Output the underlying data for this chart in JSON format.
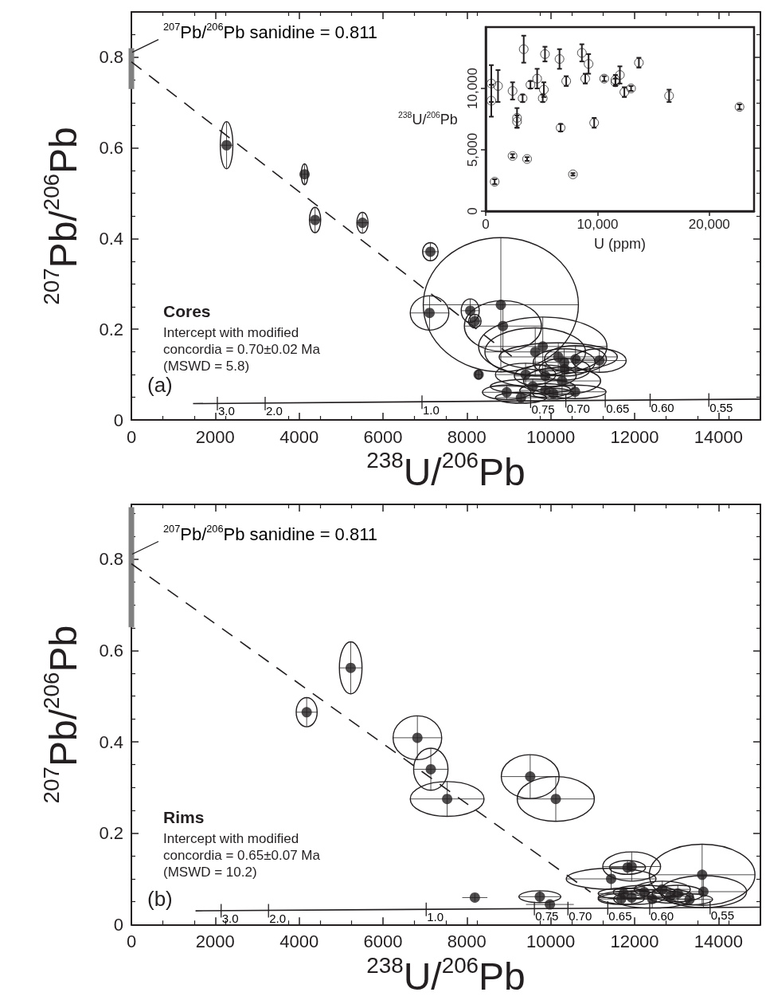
{
  "chart_data": [
    {
      "type": "scatter",
      "title": "Cores",
      "subtitle": "Intercept with modified\nconcordia = 0.70±0.02 Ma\n(MSWD = 5.8)",
      "xlabel": "$^{238}$U/$^{206}$Pb",
      "ylabel": "$^{207}$Pb/$^{206}$Pb",
      "xlim": [
        0,
        15000
      ],
      "xticks": [
        0,
        2000,
        4000,
        6000,
        8000,
        10000,
        12000,
        14000
      ],
      "ylim": [
        0,
        0.9
      ],
      "yticks": [
        0,
        0.2,
        0.4,
        0.6,
        0.8
      ],
      "series": [
        {
          "type": "line",
          "color": "#808080",
          "x": [
            0,
            0
          ],
          "values": [
            0.73,
            0.82
          ]
        },
        {
          "type": "scatter",
          "marker": "circle",
          "color": "#231f20",
          "x": [
            2270,
            4130,
            4380,
            5510,
            7130,
            7110,
            8810,
            8080,
            8190,
            8860,
            9810,
            9630,
            10180,
            10320,
            10590,
            11160,
            8280,
            9400,
            9870,
            10270,
            10330,
            9570,
            9870,
            10060,
            10580,
            8950,
            9290
          ],
          "values": [
            0.606,
            0.542,
            0.441,
            0.435,
            0.371,
            0.236,
            0.254,
            0.241,
            0.218,
            0.207,
            0.162,
            0.15,
            0.139,
            0.127,
            0.134,
            0.131,
            0.1,
            0.1,
            0.097,
            0.086,
            0.112,
            0.074,
            0.065,
            0.058,
            0.062,
            0.061,
            0.049
          ],
          "xerrors": [
            150,
            80,
            135,
            135,
            185,
            460,
            1850,
            215,
            150,
            920,
            1530,
            1200,
            1410,
            740,
            740,
            640,
            80,
            720,
            740,
            920,
            610,
            1010,
            610,
            490,
            740,
            580,
            610
          ],
          "errors": [
            0.052,
            0.023,
            0.028,
            0.023,
            0.02,
            0.038,
            0.148,
            0.026,
            0.015,
            0.056,
            0.065,
            0.053,
            0.031,
            0.03,
            0.03,
            0.026,
            0.01,
            0.025,
            0.024,
            0.03,
            0.024,
            0.016,
            0.015,
            0.012,
            0.015,
            0.016,
            0.012
          ]
        },
        {
          "type": "line",
          "color": "#231f20",
          "line_style": "dashed",
          "x": [
            0,
            9200
          ],
          "values": [
            0.79,
            0.131
          ]
        },
        {
          "type": "line",
          "color": "#231f20",
          "line_style": "solid",
          "x": [
            1470,
            15000
          ],
          "values": [
            0.036,
            0.046
          ]
        }
      ],
      "annotations": [
        "(a)",
        {
          "text": "$^{207}$Pb/$^{206}$Pb sanidine = 0.811",
          "x": 0,
          "y": 0.811
        },
        {
          "text": "3.0",
          "x": 2050,
          "y": 0.037
        },
        {
          "text": "2.0",
          "x": 3190,
          "y": 0.037
        },
        {
          "text": "1.0",
          "x": 6930,
          "y": 0.04
        },
        {
          "text": "0.75",
          "x": 9520,
          "y": 0.042
        },
        {
          "text": "0.70",
          "x": 10360,
          "y": 0.043
        },
        {
          "text": "0.65",
          "x": 11300,
          "y": 0.043
        },
        {
          "text": "0.60",
          "x": 12370,
          "y": 0.044
        },
        {
          "text": "0.55",
          "x": 13770,
          "y": 0.045
        }
      ]
    },
    {
      "type": "scatter",
      "xlabel": "U (ppm)",
      "ylabel": "$^{238}$U/$^{206}$Pb",
      "xlim": [
        0,
        24000
      ],
      "xticks": [
        0,
        {
          "value": 10000,
          "label": "10,000"
        },
        {
          "value": 20000,
          "label": "20,000"
        }
      ],
      "ylim": [
        0,
        15000
      ],
      "yticks": [
        0,
        {
          "value": 5000,
          "label": "5,000"
        },
        {
          "value": 10000,
          "label": "10,000"
        }
      ],
      "series": [
        {
          "type": "scatter",
          "marker": "circle",
          "color": "#231f20",
          "x": [
            500,
            500,
            1100,
            2400,
            3400,
            3300,
            2800,
            2800,
            2400,
            3700,
            800,
            4000,
            4600,
            5300,
            5200,
            5100,
            6600,
            6700,
            7200,
            7800,
            8600,
            9200,
            8900,
            9700,
            10600,
            11600,
            11600,
            12000,
            12400,
            13000,
            13700,
            16400,
            22700
          ],
          "values": [
            10400,
            9000,
            10200,
            9800,
            13200,
            9200,
            7600,
            7300,
            4500,
            4250,
            2400,
            10300,
            10800,
            12800,
            9900,
            9200,
            12400,
            6800,
            10600,
            3000,
            12900,
            12000,
            10800,
            7200,
            10800,
            10700,
            10500,
            11100,
            9700,
            10000,
            12100,
            9400,
            8500
          ],
          "errors": [
            1500,
            1300,
            1300,
            700,
            1100,
            300,
            800,
            500,
            150,
            150,
            200,
            300,
            800,
            600,
            600,
            300,
            800,
            300,
            400,
            100,
            700,
            800,
            400,
            400,
            200,
            400,
            300,
            700,
            400,
            200,
            400,
            500,
            200
          ]
        }
      ]
    },
    {
      "type": "scatter",
      "title": "Rims",
      "subtitle": "Intercept with modified\nconcordia = 0.65±0.07 Ma\n(MSWD = 10.2)",
      "xlabel": "$^{238}$U/$^{206}$Pb",
      "ylabel": "$^{207}$Pb/$^{206}$Pb",
      "xlim": [
        0,
        15000
      ],
      "xticks": [
        0,
        2000,
        4000,
        6000,
        8000,
        10000,
        12000,
        14000
      ],
      "ylim": [
        0,
        0.92
      ],
      "yticks": [
        0,
        0.2,
        0.4,
        0.6,
        0.8
      ],
      "series": [
        {
          "type": "line",
          "color": "#808080",
          "x": [
            0,
            0
          ],
          "values": [
            0.651,
            0.914
          ]
        },
        {
          "type": "scatter",
          "marker": "circle",
          "color": "#231f20",
          "x": [
            5230,
            4180,
            6820,
            7140,
            7530,
            9510,
            10120,
            8190,
            9740,
            9980,
            11930,
            11830,
            11440,
            13610,
            13640,
            11740,
            11930,
            12230,
            12420,
            12660,
            12850,
            13030,
            13310,
            11680
          ],
          "values": [
            0.562,
            0.465,
            0.409,
            0.34,
            0.275,
            0.324,
            0.275,
            0.059,
            0.061,
            0.044,
            0.127,
            0.125,
            0.1,
            0.109,
            0.072,
            0.068,
            0.059,
            0.071,
            0.056,
            0.077,
            0.062,
            0.068,
            0.055,
            0.056
          ],
          "xerrors": [
            270,
            250,
            580,
            410,
            880,
            690,
            920,
            300,
            500,
            570,
            690,
            430,
            1070,
            1260,
            1030,
            610,
            800,
            740,
            920,
            670,
            550,
            610,
            550,
            550
          ],
          "errors": [
            0.057,
            0.032,
            0.048,
            0.046,
            0.038,
            0.048,
            0.049,
            0.008,
            0.013,
            0.008,
            0.032,
            0.015,
            0.023,
            0.067,
            0.035,
            0.012,
            0.015,
            0.015,
            0.02,
            0.018,
            0.015,
            0.018,
            0.012,
            0.012
          ]
        },
        {
          "type": "line",
          "color": "#231f20",
          "line_style": "dashed",
          "x": [
            0,
            10950
          ],
          "values": [
            0.79,
            0.071
          ]
        },
        {
          "type": "line",
          "color": "#231f20",
          "line_style": "solid",
          "x": [
            1530,
            15000
          ],
          "values": [
            0.03,
            0.038
          ]
        }
      ],
      "annotations": [
        "(b)",
        {
          "text": "$^{207}$Pb/$^{206}$Pb sanidine = 0.811",
          "x": 0,
          "y": 0.811
        },
        {
          "text": "3.0",
          "x": 2140,
          "y": 0.031
        },
        {
          "text": "2.0",
          "x": 3270,
          "y": 0.031
        },
        {
          "text": "1.0",
          "x": 7030,
          "y": 0.034
        },
        {
          "text": "0.75",
          "x": 9610,
          "y": 0.036
        },
        {
          "text": "0.70",
          "x": 10410,
          "y": 0.036
        },
        {
          "text": "0.65",
          "x": 11360,
          "y": 0.037
        },
        {
          "text": "0.60",
          "x": 12360,
          "y": 0.037
        },
        {
          "text": "0.55",
          "x": 13800,
          "y": 0.038
        }
      ]
    }
  ]
}
